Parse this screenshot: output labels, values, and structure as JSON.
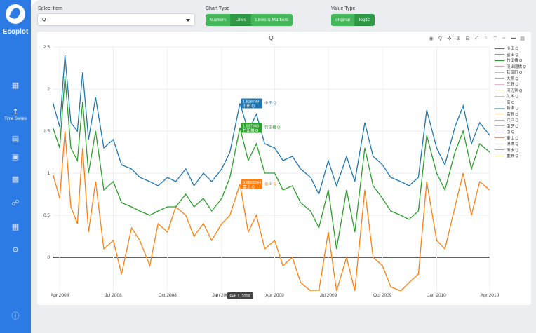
{
  "brand": "Ecoplot",
  "sidebar": {
    "active_label": "Time Series"
  },
  "controls": {
    "select_label": "Select Item",
    "select_value": "Q",
    "chart_type_label": "Chart Type",
    "chart_type_options": [
      "Markers",
      "Lines",
      "Lines & Markers"
    ],
    "chart_type_selected": "Lines",
    "value_type_label": "Value Type",
    "value_type_options": [
      "original",
      "log10"
    ],
    "value_type_selected": "log10"
  },
  "chart_data": {
    "type": "line",
    "title": "Q",
    "ylim": [
      -0.4,
      2.5
    ],
    "yticks": [
      "2.5",
      "2",
      "1.5",
      "1",
      "0.5",
      "0"
    ],
    "x_range": [
      "2008-03-20",
      "2010-04-01"
    ],
    "xticks": [
      "Apr 2008",
      "Jul 2008",
      "Oct 2008",
      "Jan 2009",
      "Apr 2009",
      "Jul 2009",
      "Oct 2009",
      "Jan 2010",
      "Apr 2010"
    ],
    "series": [
      {
        "name": "小田 Q",
        "color": "#1f77b4",
        "x": [
          "2008-03-20",
          "2008-04-01",
          "2008-04-10",
          "2008-04-20",
          "2008-05-01",
          "2008-05-10",
          "2008-05-20",
          "2008-06-01",
          "2008-06-15",
          "2008-07-01",
          "2008-07-15",
          "2008-08-01",
          "2008-08-15",
          "2008-09-01",
          "2008-09-15",
          "2008-10-01",
          "2008-10-15",
          "2008-11-01",
          "2008-11-15",
          "2008-12-01",
          "2008-12-15",
          "2009-01-01",
          "2009-01-15",
          "2009-02-01",
          "2009-02-15",
          "2009-03-01",
          "2009-03-15",
          "2009-04-01",
          "2009-04-15",
          "2009-05-01",
          "2009-05-15",
          "2009-06-01",
          "2009-06-15",
          "2009-07-01",
          "2009-07-15",
          "2009-08-01",
          "2009-08-15",
          "2009-09-01",
          "2009-09-15",
          "2009-10-01",
          "2009-10-15",
          "2009-11-01",
          "2009-11-15",
          "2009-12-01",
          "2009-12-15",
          "2010-01-01",
          "2010-01-15",
          "2010-02-01",
          "2010-02-15",
          "2010-03-01",
          "2010-03-15",
          "2010-04-01"
        ],
        "values": [
          1.85,
          1.55,
          2.4,
          1.6,
          1.5,
          2.2,
          1.4,
          1.9,
          1.3,
          1.4,
          1.1,
          1.05,
          0.95,
          0.9,
          0.85,
          0.95,
          0.9,
          1.05,
          0.85,
          1.0,
          0.9,
          1.05,
          1.25,
          1.83,
          1.5,
          1.7,
          1.35,
          1.3,
          1.15,
          1.2,
          1.05,
          0.95,
          0.75,
          1.15,
          0.85,
          1.2,
          0.9,
          1.6,
          1.2,
          1.1,
          0.95,
          0.9,
          0.85,
          0.95,
          1.75,
          1.3,
          1.1,
          1.55,
          1.8,
          1.35,
          1.6,
          1.45
        ]
      },
      {
        "name": "富士 Q",
        "color": "#ff7f0e",
        "x": [
          "2008-03-20",
          "2008-04-01",
          "2008-04-10",
          "2008-04-20",
          "2008-05-01",
          "2008-05-10",
          "2008-05-20",
          "2008-06-01",
          "2008-06-15",
          "2008-07-01",
          "2008-07-15",
          "2008-08-01",
          "2008-08-15",
          "2008-09-01",
          "2008-09-15",
          "2008-10-01",
          "2008-10-15",
          "2008-11-01",
          "2008-11-15",
          "2008-12-01",
          "2008-12-15",
          "2009-01-01",
          "2009-01-15",
          "2009-02-01",
          "2009-02-15",
          "2009-03-01",
          "2009-03-15",
          "2009-04-01",
          "2009-04-15",
          "2009-05-01",
          "2009-05-15",
          "2009-06-01",
          "2009-06-15",
          "2009-07-01",
          "2009-07-15",
          "2009-08-01",
          "2009-08-15",
          "2009-09-01",
          "2009-09-15",
          "2009-10-01",
          "2009-10-15",
          "2009-11-01",
          "2009-11-15",
          "2009-12-01",
          "2009-12-15",
          "2010-01-01",
          "2010-01-15",
          "2010-02-01",
          "2010-02-15",
          "2010-03-01",
          "2010-03-15",
          "2010-04-01"
        ],
        "values": [
          1.0,
          0.7,
          1.5,
          0.6,
          0.4,
          1.3,
          0.3,
          0.9,
          0.1,
          0.2,
          -0.2,
          0.35,
          0.2,
          -0.1,
          0.4,
          0.3,
          0.6,
          0.5,
          0.25,
          0.4,
          0.2,
          0.4,
          0.5,
          0.87,
          0.3,
          0.5,
          0.1,
          0.2,
          -0.1,
          0.0,
          -0.3,
          -0.4,
          -0.4,
          0.3,
          -0.4,
          0.0,
          -0.4,
          0.8,
          0.0,
          -0.1,
          -0.35,
          -0.4,
          -0.3,
          -0.2,
          0.9,
          0.2,
          0.1,
          0.6,
          1.0,
          0.5,
          0.9,
          0.8
        ]
      },
      {
        "name": "竹田橋 Q",
        "color": "#2ca02c",
        "x": [
          "2008-03-20",
          "2008-04-01",
          "2008-04-10",
          "2008-04-20",
          "2008-05-01",
          "2008-05-10",
          "2008-05-20",
          "2008-06-01",
          "2008-06-15",
          "2008-07-01",
          "2008-07-15",
          "2008-08-01",
          "2008-08-15",
          "2008-09-01",
          "2008-09-15",
          "2008-10-01",
          "2008-10-15",
          "2008-11-01",
          "2008-11-15",
          "2008-12-01",
          "2008-12-15",
          "2009-01-01",
          "2009-01-15",
          "2009-02-01",
          "2009-02-15",
          "2009-03-01",
          "2009-03-15",
          "2009-04-01",
          "2009-04-15",
          "2009-05-01",
          "2009-05-15",
          "2009-06-01",
          "2009-06-15",
          "2009-07-01",
          "2009-07-15",
          "2009-08-01",
          "2009-08-15",
          "2009-09-01",
          "2009-09-15",
          "2009-10-01",
          "2009-10-15",
          "2009-11-01",
          "2009-11-15",
          "2009-12-01",
          "2009-12-15",
          "2010-01-01",
          "2010-01-15",
          "2010-02-01",
          "2010-02-15",
          "2010-03-01",
          "2010-03-15",
          "2010-04-01"
        ],
        "values": [
          1.55,
          1.3,
          2.15,
          1.3,
          1.15,
          1.85,
          1.0,
          1.5,
          0.8,
          0.9,
          0.65,
          0.6,
          0.55,
          0.5,
          0.55,
          0.6,
          0.6,
          0.75,
          0.6,
          0.7,
          0.55,
          0.7,
          0.95,
          1.54,
          1.15,
          1.35,
          1.0,
          1.0,
          0.8,
          0.85,
          0.65,
          0.55,
          0.35,
          0.8,
          0.1,
          0.8,
          0.3,
          1.3,
          0.85,
          0.7,
          0.55,
          0.5,
          0.45,
          0.55,
          1.45,
          1.0,
          0.8,
          1.25,
          1.5,
          1.05,
          1.35,
          1.25
        ]
      },
      {
        "name": "羽出庭橋 Q",
        "color": "#d7a1a8",
        "x": [],
        "values": []
      },
      {
        "name": "荻窪町 Q",
        "color": "#c7b3d8",
        "x": [],
        "values": []
      },
      {
        "name": "大照 Q",
        "color": "#c9a894",
        "x": [],
        "values": []
      },
      {
        "name": "三野 Q",
        "color": "#e8b4d8",
        "x": [],
        "values": []
      },
      {
        "name": "河辺寮 Q",
        "color": "#c8c8a0",
        "x": [],
        "values": []
      },
      {
        "name": "久木 Q",
        "color": "#a8d8c8",
        "x": [],
        "values": []
      },
      {
        "name": "富 Q",
        "color": "#a8c0e0",
        "x": [],
        "values": []
      },
      {
        "name": "新津 Q",
        "color": "#8fbfe0",
        "x": [],
        "values": []
      },
      {
        "name": "高野 Q",
        "color": "#f0b890",
        "x": [],
        "values": []
      },
      {
        "name": "穴戸 Q",
        "color": "#90d090",
        "x": [],
        "values": []
      },
      {
        "name": "南芝 Q",
        "color": "#f0a0a0",
        "x": [],
        "values": []
      },
      {
        "name": "引 Q",
        "color": "#b8a0d8",
        "x": [],
        "values": []
      },
      {
        "name": "東山 Q",
        "color": "#c8a090",
        "x": [],
        "values": []
      },
      {
        "name": "湧橋 Q",
        "color": "#e8b0d0",
        "x": [],
        "values": []
      },
      {
        "name": "清水 Q",
        "color": "#b0b0b0",
        "x": [],
        "values": []
      },
      {
        "name": "重野 Q",
        "color": "#d8d890",
        "x": [],
        "values": []
      }
    ],
    "hover": {
      "x_label": "Feb 1, 2009",
      "labels": [
        {
          "value": "1.828789",
          "series_short": "小田 Q",
          "series": "小田 Q",
          "color": "#1f77b4"
        },
        {
          "value": "1.537945",
          "series_short": "竹田橋 Q",
          "series": "竹田橋 Q",
          "color": "#2ca02c"
        },
        {
          "value": "0.8669344",
          "series_short": "富士 Q",
          "series": "富士 Q",
          "color": "#ff7f0e"
        }
      ]
    }
  }
}
